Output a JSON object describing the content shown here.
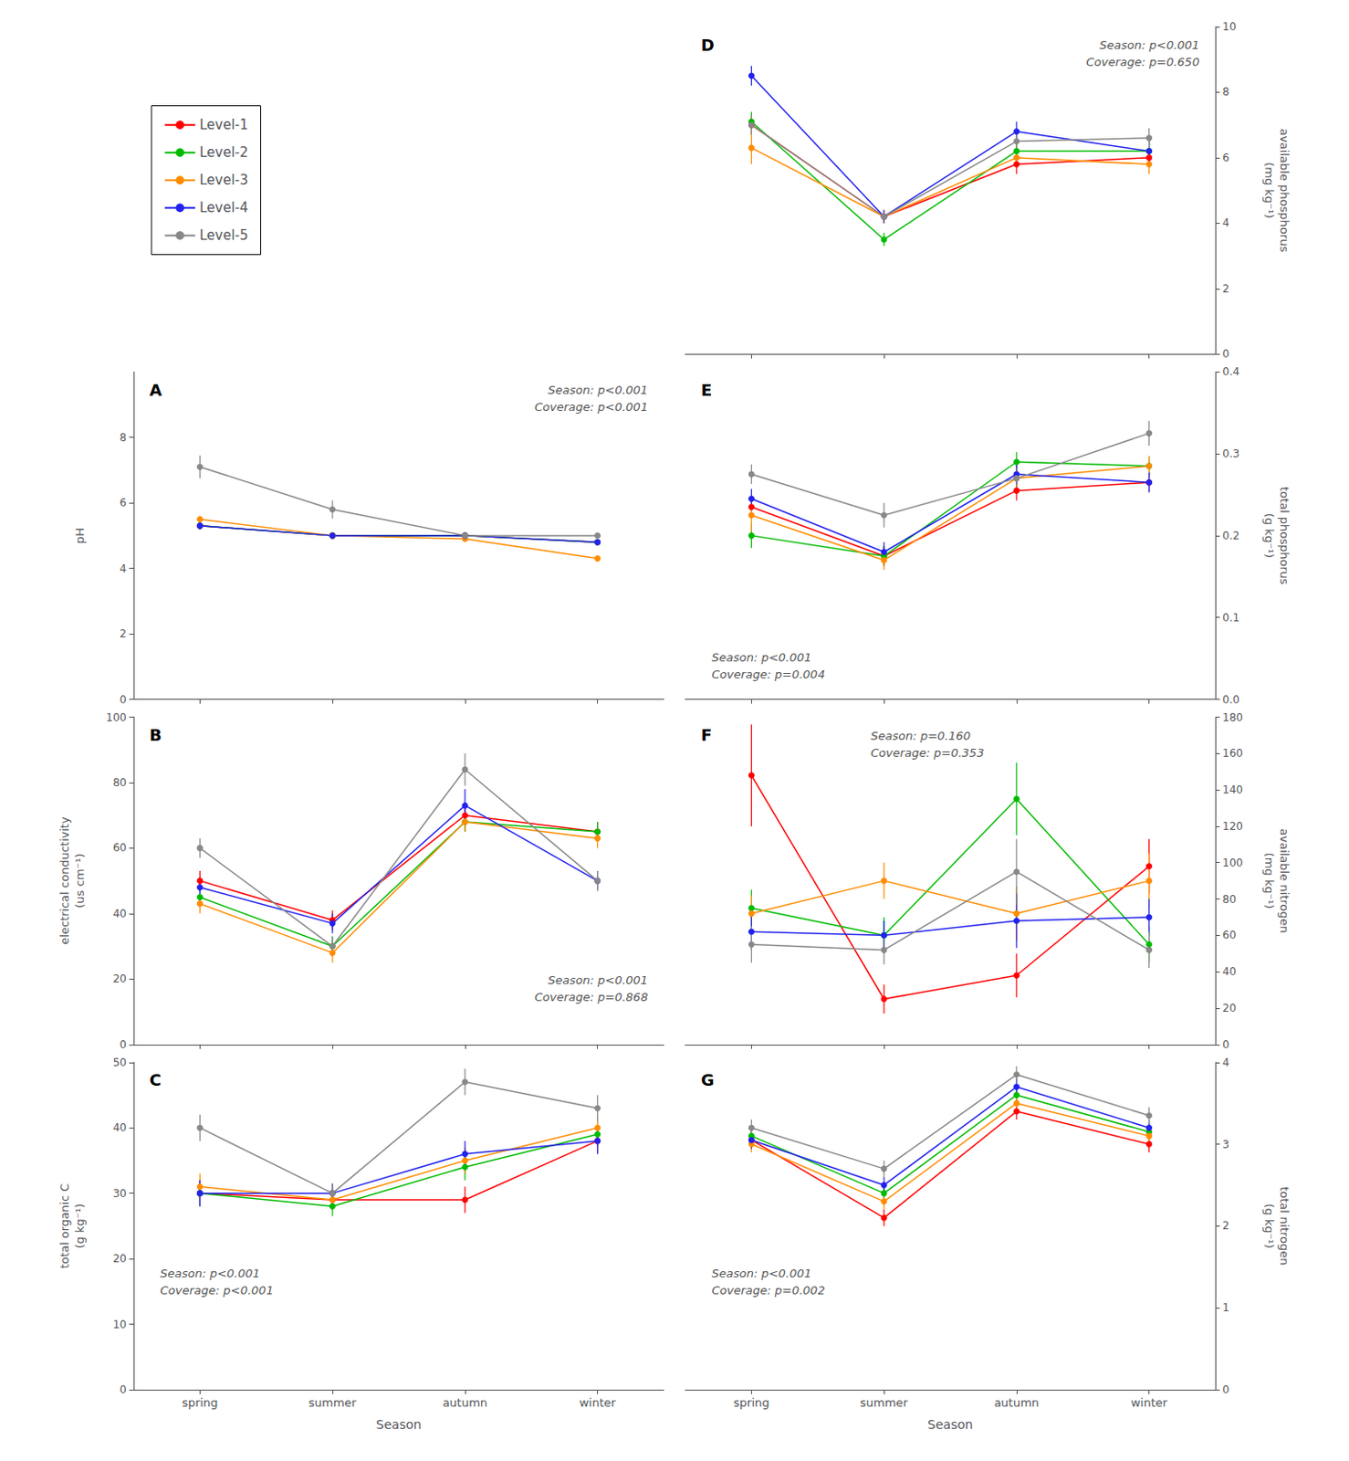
{
  "chart_data": [
    {
      "type": "line",
      "title": "D",
      "ylabel": "available phosphorus\n(mg kg⁻¹)",
      "annotation": "Season: p<0.001\nCoverage: p=0.650",
      "categories": [
        "spring",
        "summer",
        "autumn",
        "winter"
      ],
      "ylim": [
        0,
        10
      ],
      "yticks": [
        0,
        2,
        4,
        6,
        8,
        10
      ],
      "grid": false,
      "tick_labels": "y",
      "marker": "circle",
      "legend": "upper left",
      "series": [
        {
          "name": "Level-1",
          "color": "#FF0000",
          "values": [
            7.0,
            4.2,
            5.8,
            6.0
          ],
          "err": [
            0.3,
            0.2,
            0.3,
            0.3
          ]
        },
        {
          "name": "Level-2",
          "color": "#00BB00",
          "values": [
            7.1,
            3.5,
            6.2,
            6.2
          ],
          "err": [
            0.3,
            0.2,
            0.3,
            0.3
          ]
        },
        {
          "name": "Level-3",
          "color": "#FF8C00",
          "values": [
            6.3,
            4.2,
            6.0,
            5.8
          ],
          "err": [
            0.5,
            0.2,
            0.3,
            0.3
          ]
        },
        {
          "name": "Level-4",
          "color": "#2222EE",
          "values": [
            8.5,
            4.2,
            6.8,
            6.2
          ],
          "err": [
            0.3,
            0.2,
            0.3,
            0.3
          ]
        },
        {
          "name": "Level-5",
          "color": "#888888",
          "values": [
            7.0,
            4.2,
            6.5,
            6.6
          ],
          "err": [
            0.3,
            0.2,
            0.3,
            0.3
          ]
        }
      ]
    },
    {
      "type": "line",
      "title": "A",
      "ylabel": "pH",
      "annotation": "Season: p<0.001\nCoverage: p<0.001",
      "categories": [
        "spring",
        "summer",
        "autumn",
        "winter"
      ],
      "ylim": [
        0,
        10
      ],
      "yticks": [
        0,
        2,
        4,
        6,
        8
      ],
      "grid": false,
      "tick_labels": "y",
      "marker": "circle",
      "series": [
        {
          "name": "Level-1",
          "color": "#FF0000",
          "values": [
            5.3,
            5.0,
            5.0,
            4.8
          ],
          "err": [
            0.08,
            0.05,
            0.05,
            0.08
          ]
        },
        {
          "name": "Level-2",
          "color": "#00BB00",
          "values": [
            5.3,
            5.0,
            5.0,
            4.8
          ],
          "err": [
            0.08,
            0.05,
            0.05,
            0.08
          ]
        },
        {
          "name": "Level-3",
          "color": "#FF8C00",
          "values": [
            5.5,
            5.0,
            4.9,
            4.3
          ],
          "err": [
            0.1,
            0.05,
            0.05,
            0.1
          ]
        },
        {
          "name": "Level-4",
          "color": "#2222EE",
          "values": [
            5.3,
            5.0,
            5.0,
            4.8
          ],
          "err": [
            0.08,
            0.05,
            0.05,
            0.08
          ]
        },
        {
          "name": "Level-5",
          "color": "#888888",
          "values": [
            7.1,
            5.8,
            5.0,
            5.0
          ],
          "err": [
            0.35,
            0.28,
            0.05,
            0.05
          ]
        }
      ]
    },
    {
      "type": "line",
      "title": "E",
      "ylabel": "total phosphorus\n(g kg⁻¹)",
      "annotation": "Season: p<0.001\nCoverage: p=0.004",
      "categories": [
        "spring",
        "summer",
        "autumn",
        "winter"
      ],
      "ylim": [
        0,
        0.4
      ],
      "yticks": [
        {
          "value": 0,
          "label": "0.0"
        },
        0.1,
        0.2,
        0.3,
        0.4
      ],
      "grid": false,
      "tick_labels": "y",
      "marker": "circle",
      "series": [
        {
          "name": "Level-1",
          "color": "#FF0000",
          "values": [
            0.235,
            0.175,
            0.255,
            0.265
          ],
          "err": [
            0.012,
            0.012,
            0.012,
            0.012
          ]
        },
        {
          "name": "Level-2",
          "color": "#00BB00",
          "values": [
            0.2,
            0.175,
            0.29,
            0.285
          ],
          "err": [
            0.015,
            0.012,
            0.012,
            0.012
          ]
        },
        {
          "name": "Level-3",
          "color": "#FF8C00",
          "values": [
            0.225,
            0.17,
            0.27,
            0.285
          ],
          "err": [
            0.02,
            0.012,
            0.012,
            0.012
          ]
        },
        {
          "name": "Level-4",
          "color": "#2222EE",
          "values": [
            0.245,
            0.18,
            0.275,
            0.265
          ],
          "err": [
            0.012,
            0.012,
            0.012,
            0.012
          ]
        },
        {
          "name": "Level-5",
          "color": "#888888",
          "values": [
            0.275,
            0.225,
            0.27,
            0.325
          ],
          "err": [
            0.012,
            0.015,
            0.012,
            0.015
          ]
        }
      ]
    },
    {
      "type": "line",
      "title": "B",
      "ylabel": "electrical conductivity\n(us cm⁻¹)",
      "annotation": "Season: p<0.001\nCoverage: p=0.868",
      "categories": [
        "spring",
        "summer",
        "autumn",
        "winter"
      ],
      "ylim": [
        0,
        100
      ],
      "yticks": [
        0,
        20,
        40,
        60,
        80,
        100
      ],
      "grid": false,
      "tick_labels": "y",
      "marker": "circle",
      "series": [
        {
          "name": "Level-1",
          "color": "#FF0000",
          "values": [
            50,
            38,
            70,
            65
          ],
          "err": [
            3,
            3,
            3,
            3
          ]
        },
        {
          "name": "Level-2",
          "color": "#00BB00",
          "values": [
            45,
            30,
            68,
            65
          ],
          "err": [
            3,
            3,
            3,
            3
          ]
        },
        {
          "name": "Level-3",
          "color": "#FF8C00",
          "values": [
            43,
            28,
            68,
            63
          ],
          "err": [
            3,
            3,
            3,
            3
          ]
        },
        {
          "name": "Level-4",
          "color": "#2222EE",
          "values": [
            48,
            37,
            73,
            50
          ],
          "err": [
            3,
            3,
            5,
            3
          ]
        },
        {
          "name": "Level-5",
          "color": "#888888",
          "values": [
            60,
            30,
            84,
            50
          ],
          "err": [
            3,
            3,
            5,
            3
          ]
        }
      ]
    },
    {
      "type": "line",
      "title": "F",
      "ylabel": "available nitrogen\n(mg kg⁻¹)",
      "annotation": "Season: p=0.160\nCoverage: p=0.353",
      "categories": [
        "spring",
        "summer",
        "autumn",
        "winter"
      ],
      "ylim": [
        0,
        180
      ],
      "yticks": [
        0,
        20,
        40,
        60,
        80,
        100,
        120,
        140,
        160,
        180
      ],
      "grid": false,
      "tick_labels": "y",
      "marker": "circle",
      "series": [
        {
          "name": "Level-1",
          "color": "#FF0000",
          "values": [
            148,
            25,
            38,
            98
          ],
          "err": [
            28,
            8,
            12,
            15
          ]
        },
        {
          "name": "Level-2",
          "color": "#00BB00",
          "values": [
            75,
            60,
            135,
            55
          ],
          "err": [
            10,
            10,
            20,
            10
          ]
        },
        {
          "name": "Level-3",
          "color": "#FF8C00",
          "values": [
            72,
            90,
            72,
            90
          ],
          "err": [
            10,
            10,
            15,
            15
          ]
        },
        {
          "name": "Level-4",
          "color": "#2222EE",
          "values": [
            62,
            60,
            68,
            70
          ],
          "err": [
            10,
            8,
            15,
            10
          ]
        },
        {
          "name": "Level-5",
          "color": "#888888",
          "values": [
            55,
            52,
            95,
            52
          ],
          "err": [
            10,
            8,
            18,
            10
          ]
        }
      ]
    },
    {
      "type": "line",
      "title": "C",
      "ylabel": "total organic C\n(g kg⁻¹)",
      "xlabel": "Season",
      "annotation": "Season: p<0.001\nCoverage: p<0.001",
      "categories": [
        "spring",
        "summer",
        "autumn",
        "winter"
      ],
      "ylim": [
        0,
        50
      ],
      "yticks": [
        0,
        10,
        20,
        30,
        40,
        50
      ],
      "grid": false,
      "marker": "circle",
      "series": [
        {
          "name": "Level-1",
          "color": "#FF0000",
          "values": [
            30,
            29,
            29,
            38
          ],
          "err": [
            2,
            1.5,
            2,
            2
          ]
        },
        {
          "name": "Level-2",
          "color": "#00BB00",
          "values": [
            30,
            28,
            34,
            39
          ],
          "err": [
            2,
            1.5,
            2,
            2
          ]
        },
        {
          "name": "Level-3",
          "color": "#FF8C00",
          "values": [
            31,
            29,
            35,
            40
          ],
          "err": [
            2,
            1.5,
            2,
            2
          ]
        },
        {
          "name": "Level-4",
          "color": "#2222EE",
          "values": [
            30,
            30,
            36,
            38
          ],
          "err": [
            2,
            1.5,
            2,
            2
          ]
        },
        {
          "name": "Level-5",
          "color": "#888888",
          "values": [
            40,
            30,
            47,
            43
          ],
          "err": [
            2,
            1.5,
            2,
            2
          ]
        }
      ]
    },
    {
      "type": "line",
      "title": "G",
      "ylabel": "total nitrogen\n(g kg⁻¹)",
      "xlabel": "Season",
      "annotation": "Season: p<0.001\nCoverage: p=0.002",
      "categories": [
        "spring",
        "summer",
        "autumn",
        "winter"
      ],
      "ylim": [
        0,
        4
      ],
      "yticks": [
        0,
        1,
        2,
        3,
        4
      ],
      "grid": false,
      "marker": "circle",
      "series": [
        {
          "name": "Level-1",
          "color": "#FF0000",
          "values": [
            3.05,
            2.1,
            3.4,
            3.0
          ],
          "err": [
            0.12,
            0.1,
            0.1,
            0.1
          ]
        },
        {
          "name": "Level-2",
          "color": "#00BB00",
          "values": [
            3.1,
            2.4,
            3.6,
            3.15
          ],
          "err": [
            0.1,
            0.1,
            0.1,
            0.1
          ]
        },
        {
          "name": "Level-3",
          "color": "#FF8C00",
          "values": [
            3.0,
            2.3,
            3.5,
            3.1
          ],
          "err": [
            0.1,
            0.1,
            0.1,
            0.1
          ]
        },
        {
          "name": "Level-4",
          "color": "#2222EE",
          "values": [
            3.05,
            2.5,
            3.7,
            3.2
          ],
          "err": [
            0.1,
            0.1,
            0.1,
            0.1
          ]
        },
        {
          "name": "Level-5",
          "color": "#888888",
          "values": [
            3.2,
            2.7,
            3.85,
            3.35
          ],
          "err": [
            0.1,
            0.1,
            0.1,
            0.1
          ]
        }
      ]
    }
  ]
}
